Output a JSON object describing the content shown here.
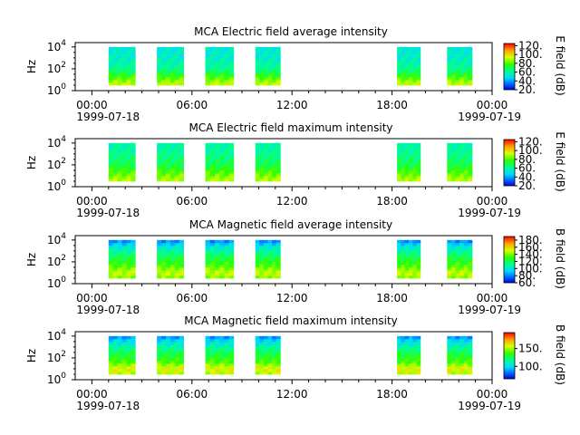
{
  "chart_data": [
    {
      "type": "heatmap",
      "title": "MCA  Electric field average intensity",
      "ylabel": "Hz",
      "colorbar_label": "E field (dB)",
      "colorbar_ticks": [
        "20.",
        "40.",
        "60.",
        "80.",
        "100.",
        "120."
      ],
      "colorbar_range": [
        20,
        125
      ],
      "x_ticks": [
        "00:00",
        "06:00",
        "12:00",
        "18:00",
        "00:00"
      ],
      "x_start_date": "1999-07-18",
      "x_end_date": "1999-07-19",
      "xlim_hours": [
        -1,
        24
      ],
      "y_ticks": [
        "10^0",
        "10^2",
        "10^4"
      ],
      "ylim_log10": [
        0,
        4.4
      ],
      "data_range_log10": [
        0.5,
        4.0
      ],
      "segments_hours": [
        [
          1.0,
          2.6
        ],
        [
          3.9,
          5.5
        ],
        [
          6.8,
          8.5
        ],
        [
          9.8,
          11.3
        ],
        [
          18.3,
          19.7
        ],
        [
          21.3,
          22.8
        ]
      ],
      "intensity_profile": [
        {
          "log_f": 0.5,
          "value": 95
        },
        {
          "log_f": 1.2,
          "value": 80
        },
        {
          "log_f": 2.0,
          "value": 62
        },
        {
          "log_f": 3.0,
          "value": 55
        },
        {
          "log_f": 4.0,
          "value": 52
        }
      ]
    },
    {
      "type": "heatmap",
      "title": "MCA  Electric field maximum intensity",
      "ylabel": "Hz",
      "colorbar_label": "E field (dB)",
      "colorbar_ticks": [
        "20.",
        "40.",
        "60.",
        "80.",
        "100.",
        "120."
      ],
      "colorbar_range": [
        20,
        125
      ],
      "x_ticks": [
        "00:00",
        "06:00",
        "12:00",
        "18:00",
        "00:00"
      ],
      "x_start_date": "1999-07-18",
      "x_end_date": "1999-07-19",
      "xlim_hours": [
        -1,
        24
      ],
      "y_ticks": [
        "10^0",
        "10^2",
        "10^4"
      ],
      "ylim_log10": [
        0,
        4.4
      ],
      "data_range_log10": [
        0.5,
        4.0
      ],
      "segments_hours": [
        [
          1.0,
          2.6
        ],
        [
          3.9,
          5.5
        ],
        [
          6.8,
          8.5
        ],
        [
          9.8,
          11.3
        ],
        [
          18.3,
          19.7
        ],
        [
          21.3,
          22.8
        ]
      ],
      "intensity_profile": [
        {
          "log_f": 0.5,
          "value": 92
        },
        {
          "log_f": 1.2,
          "value": 82
        },
        {
          "log_f": 2.0,
          "value": 70
        },
        {
          "log_f": 3.0,
          "value": 62
        },
        {
          "log_f": 4.0,
          "value": 58
        }
      ]
    },
    {
      "type": "heatmap",
      "title": "MCA  Magnetic field average intensity",
      "ylabel": "Hz",
      "colorbar_label": "B field (dB)",
      "colorbar_ticks": [
        "60.",
        "80.",
        "100.",
        "120.",
        "140.",
        "160.",
        "180."
      ],
      "colorbar_range": [
        60,
        190
      ],
      "x_ticks": [
        "00:00",
        "06:00",
        "12:00",
        "18:00",
        "00:00"
      ],
      "x_start_date": "1999-07-18",
      "x_end_date": "1999-07-19",
      "xlim_hours": [
        -1,
        24
      ],
      "y_ticks": [
        "10^0",
        "10^2",
        "10^4"
      ],
      "ylim_log10": [
        0,
        4.4
      ],
      "data_range_log10": [
        0.5,
        4.0
      ],
      "segments_hours": [
        [
          1.0,
          2.6
        ],
        [
          3.9,
          5.5
        ],
        [
          6.8,
          8.5
        ],
        [
          9.8,
          11.3
        ],
        [
          18.3,
          19.7
        ],
        [
          21.3,
          22.8
        ]
      ],
      "intensity_profile": [
        {
          "log_f": 0.5,
          "value": 140
        },
        {
          "log_f": 1.0,
          "value": 150
        },
        {
          "log_f": 1.6,
          "value": 135
        },
        {
          "log_f": 2.5,
          "value": 120
        },
        {
          "log_f": 3.4,
          "value": 100
        },
        {
          "log_f": 4.0,
          "value": 78
        }
      ]
    },
    {
      "type": "heatmap",
      "title": "MCA  Magnetic field maximum intensity",
      "ylabel": "Hz",
      "colorbar_label": "B field (dB)",
      "colorbar_ticks": [
        "100.",
        "150."
      ],
      "colorbar_range": [
        65,
        195
      ],
      "x_ticks": [
        "00:00",
        "06:00",
        "12:00",
        "18:00",
        "00:00"
      ],
      "x_start_date": "1999-07-18",
      "x_end_date": "1999-07-19",
      "xlim_hours": [
        -1,
        24
      ],
      "y_ticks": [
        "10^0",
        "10^2",
        "10^4"
      ],
      "ylim_log10": [
        0,
        4.4
      ],
      "data_range_log10": [
        0.5,
        4.0
      ],
      "segments_hours": [
        [
          1.0,
          2.6
        ],
        [
          3.9,
          5.5
        ],
        [
          6.8,
          8.5
        ],
        [
          9.8,
          11.3
        ],
        [
          18.3,
          19.7
        ],
        [
          21.3,
          22.8
        ]
      ],
      "intensity_profile": [
        {
          "log_f": 0.5,
          "value": 150
        },
        {
          "log_f": 1.0,
          "value": 160
        },
        {
          "log_f": 1.6,
          "value": 140
        },
        {
          "log_f": 2.5,
          "value": 125
        },
        {
          "log_f": 3.4,
          "value": 105
        },
        {
          "log_f": 4.0,
          "value": 85
        }
      ]
    }
  ]
}
